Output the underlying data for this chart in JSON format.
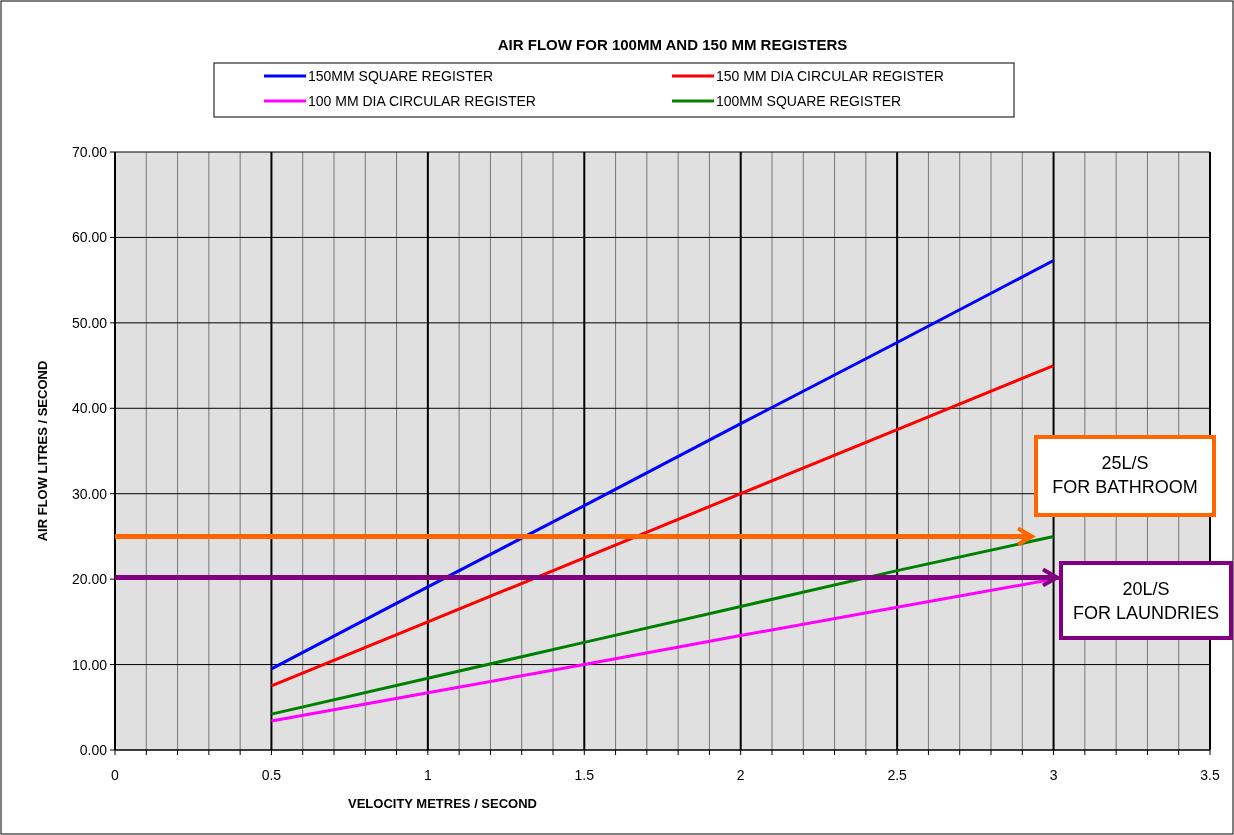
{
  "chart_data": {
    "type": "line",
    "title": "AIR FLOW FOR 100MM AND 150 MM REGISTERS",
    "xlabel": "VELOCITY METRES / SECOND",
    "ylabel": "AIR FLOW LITRES / SECOND",
    "x": [
      0.5,
      1,
      1.5,
      2,
      2.5,
      3
    ],
    "series": [
      {
        "name": "150MM SQUARE REGISTER",
        "color": "#0000ff",
        "values": [
          9.5,
          19.1,
          28.6,
          38.2,
          47.7,
          57.3
        ]
      },
      {
        "name": "150 MM DIA CIRCULAR REGISTER",
        "color": "#ff0000",
        "values": [
          7.5,
          15,
          22.5,
          30,
          37.5,
          45
        ]
      },
      {
        "name": "100 MM DIA CIRCULAR REGISTER",
        "color": "#ff00ff",
        "values": [
          3.4,
          6.7,
          10,
          13.4,
          16.7,
          20
        ]
      },
      {
        "name": "100MM SQUARE REGISTER",
        "color": "#008000",
        "values": [
          4.2,
          8.4,
          12.6,
          16.8,
          21,
          25
        ]
      }
    ],
    "xlim": [
      0,
      3.5
    ],
    "xticks": [
      0,
      {
        "value": 0.1,
        "label": null
      },
      {
        "value": 0.2,
        "label": null
      },
      {
        "value": 0.3,
        "label": null
      },
      {
        "value": 0.4,
        "label": null
      },
      0.5,
      {
        "value": 0.6,
        "label": null
      },
      {
        "value": 0.7,
        "label": null
      },
      {
        "value": 0.8,
        "label": null
      },
      {
        "value": 0.9,
        "label": null
      },
      1,
      {
        "value": 1.1,
        "label": null
      },
      {
        "value": 1.2,
        "label": null
      },
      {
        "value": 1.3,
        "label": null
      },
      {
        "value": 1.4,
        "label": null
      },
      1.5,
      {
        "value": 1.6,
        "label": null
      },
      {
        "value": 1.7,
        "label": null
      },
      {
        "value": 1.8,
        "label": null
      },
      {
        "value": 1.9,
        "label": null
      },
      2,
      {
        "value": 2.1,
        "label": null
      },
      {
        "value": 2.2,
        "label": null
      },
      {
        "value": 2.3,
        "label": null
      },
      {
        "value": 2.4,
        "label": null
      },
      2.5,
      {
        "value": 2.6,
        "label": null
      },
      {
        "value": 2.7,
        "label": null
      },
      {
        "value": 2.8,
        "label": null
      },
      {
        "value": 2.9,
        "label": null
      },
      3,
      {
        "value": 3.1,
        "label": null
      },
      {
        "value": 3.2,
        "label": null
      },
      {
        "value": 3.3,
        "label": null
      },
      {
        "value": 3.4,
        "label": null
      },
      3.5
    ],
    "ylim": [
      0,
      70
    ],
    "yticks": [
      {
        "value": 0,
        "label": "0.00"
      },
      {
        "value": 10,
        "label": "10.00"
      },
      {
        "value": 20,
        "label": "20.00"
      },
      {
        "value": 30,
        "label": "30.00"
      },
      {
        "value": 40,
        "label": "40.00"
      },
      {
        "value": 50,
        "label": "50.00"
      },
      {
        "value": 60,
        "label": "60.00"
      },
      {
        "value": 70,
        "label": "70.00"
      }
    ],
    "ref_lines": [
      {
        "axis": "y",
        "value": 25,
        "label": "25L/S FOR BATHROOM",
        "color": "#ff6600"
      },
      {
        "axis": "y",
        "value": 20.2,
        "label": "20L/S FOR LAUNDRIES",
        "color": "#800080"
      }
    ],
    "grid": true,
    "legend": "top",
    "marker": "none",
    "line_style": "solid"
  }
}
